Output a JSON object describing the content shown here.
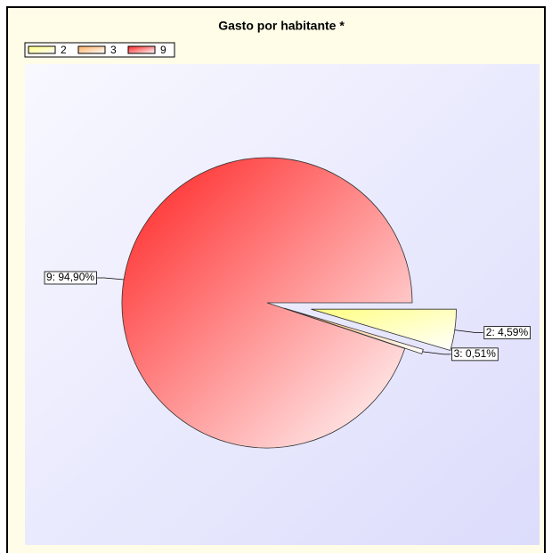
{
  "chart_data": {
    "type": "pie",
    "title": "Gasto por habitante *",
    "categories": [
      "2",
      "3",
      "9"
    ],
    "values": [
      4.59,
      0.51,
      94.9
    ],
    "value_labels": [
      "2: 4,59%",
      "3: 0,51%",
      "9: 94,90%"
    ],
    "colors": [
      "#ffff80",
      "#ffb060",
      "#ff2020"
    ],
    "legend": "top-left"
  }
}
